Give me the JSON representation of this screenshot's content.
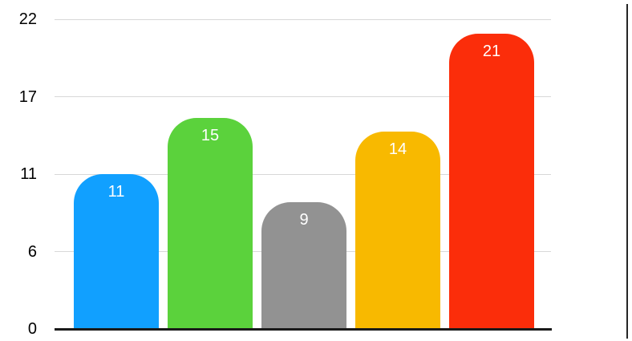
{
  "chart_data": {
    "type": "bar",
    "title": "",
    "xlabel": "",
    "ylabel": "",
    "ylim": [
      0,
      22
    ],
    "grid": true,
    "legend": "none",
    "values": [
      11,
      15,
      9,
      14,
      21
    ],
    "bars": [
      {
        "value": 11,
        "label": "11",
        "color": "#11A0FF",
        "color_name": "blue"
      },
      {
        "value": 15,
        "label": "15",
        "color": "#5BD23C",
        "color_name": "green"
      },
      {
        "value": 9,
        "label": "9",
        "color": "#929292",
        "color_name": "gray"
      },
      {
        "value": 14,
        "label": "14",
        "color": "#F8B900",
        "color_name": "yellow"
      },
      {
        "value": 21,
        "label": "21",
        "color": "#FB2D0A",
        "color_name": "red"
      }
    ],
    "y_ticks": [
      {
        "label": "22",
        "position": 1.0
      },
      {
        "label": "17",
        "position": 0.75
      },
      {
        "label": "11",
        "position": 0.5
      },
      {
        "label": "6",
        "position": 0.25
      },
      {
        "label": "0",
        "position": 0.0
      }
    ],
    "value_label_color": "#ffffff",
    "axis_label_color": "#000000",
    "gridline_color": "#d8d8d8",
    "baseline_color": "#1a1a1a"
  },
  "layout_hints": {
    "bar_corner_style": "rounded-top",
    "value_labels_inside_bar_top": true
  }
}
